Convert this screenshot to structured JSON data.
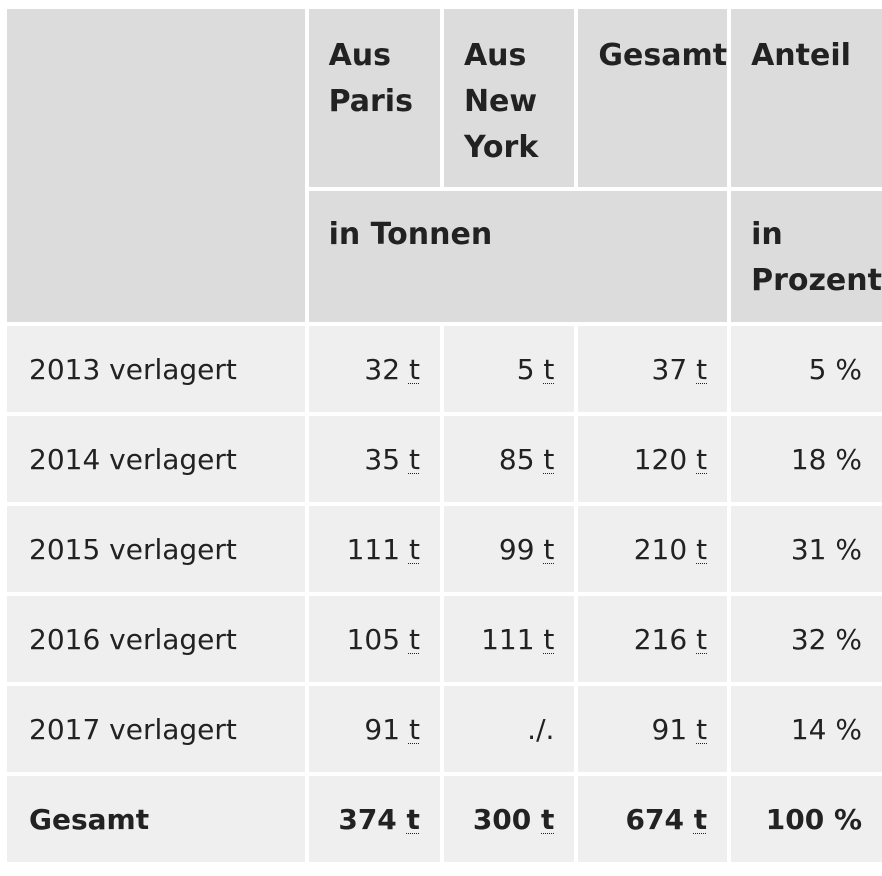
{
  "header": {
    "columns": [
      "Aus Paris",
      "Aus New York",
      "Gesamt",
      "Anteil"
    ],
    "unit_tonnes": "in Tonnen",
    "unit_percent": "in Prozent"
  },
  "rows": [
    {
      "label": "2013 verlagert",
      "paris": "32",
      "newyork": "5",
      "gesamt": "37",
      "anteil": "5 %"
    },
    {
      "label": "2014 verlagert",
      "paris": "35",
      "newyork": "85",
      "gesamt": "120",
      "anteil": "18 %"
    },
    {
      "label": "2015 verlagert",
      "paris": "111",
      "newyork": "99",
      "gesamt": "210",
      "anteil": "31 %"
    },
    {
      "label": "2016 verlagert",
      "paris": "105",
      "newyork": "111",
      "gesamt": "216",
      "anteil": "32 %"
    },
    {
      "label": "2017 verlagert",
      "paris": "91",
      "newyork": "./.",
      "gesamt": "91",
      "anteil": "14 %"
    }
  ],
  "total": {
    "label": "Gesamt",
    "paris": "374",
    "newyork": "300",
    "gesamt": "674",
    "anteil": "100 %"
  },
  "unit_abbr": "t",
  "colors": {
    "header_bg": "#dcdcdc",
    "cell_bg": "#efefef",
    "text": "#222222"
  }
}
